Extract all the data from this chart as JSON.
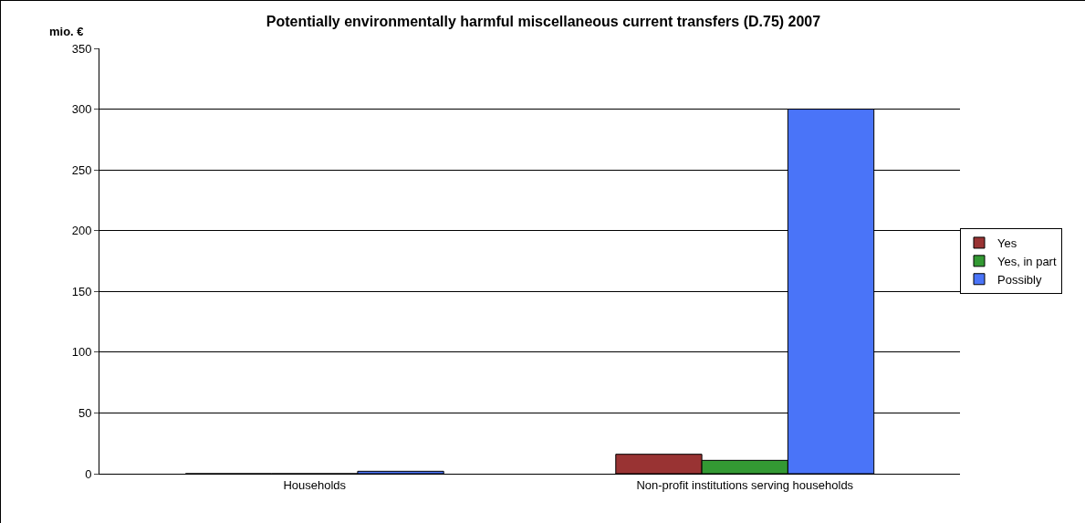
{
  "chart_data": {
    "type": "bar",
    "title": "Potentially environmentally harmful miscellaneous current transfers (D.75) 2007",
    "ylabel": "mio. €",
    "categories": [
      "Households",
      "Non-profit institutions serving households"
    ],
    "series": [
      {
        "name": "Yes",
        "color": "#993333",
        "values": [
          0,
          16
        ]
      },
      {
        "name": "Yes, in part",
        "color": "#339933",
        "values": [
          0,
          11
        ]
      },
      {
        "name": "Possibly",
        "color": "#4a74f8",
        "values": [
          2,
          300
        ]
      }
    ],
    "ylim": [
      0,
      350
    ],
    "yticks": [
      0,
      50,
      100,
      150,
      200,
      250,
      300,
      350
    ],
    "grid": "y",
    "legend": "right"
  }
}
